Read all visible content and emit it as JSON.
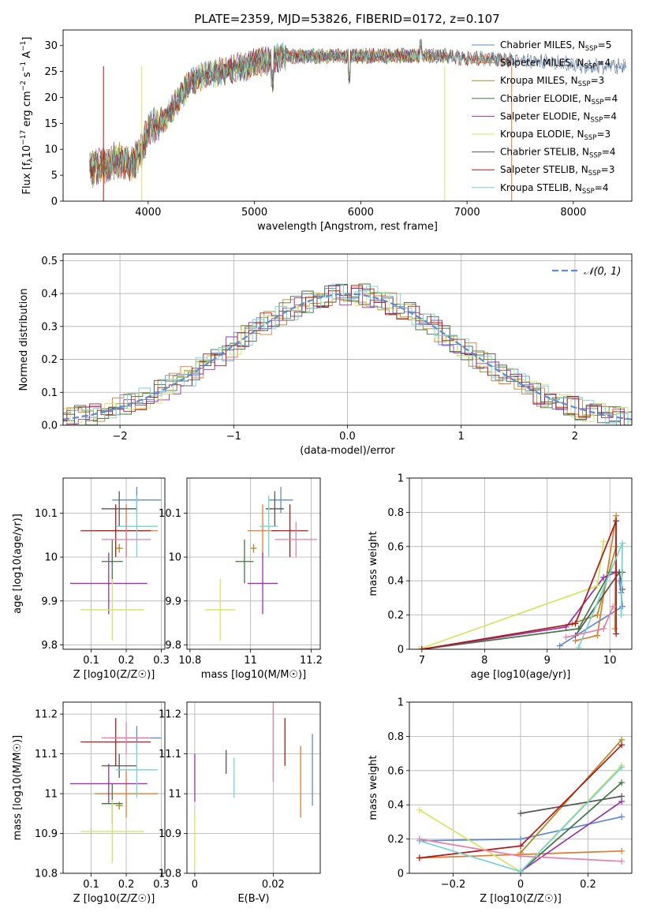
{
  "figure_title": "PLATE=2359, MJD=53826, FIBERID=0172, z=0.107",
  "colors": {
    "Chabrier MILES": "#5b8bd6",
    "Salpeter MILES": "#e07b2e",
    "Kroupa MILES": "#b08a1c",
    "Chabrier ELODIE": "#3d7a3d",
    "Salpeter ELODIE": "#9b30b5",
    "Kroupa ELODIE": "#d4e65a",
    "Chabrier STELIB": "#555555",
    "Salpeter STELIB": "#b01818",
    "Kroupa STELIB": "#72d4d4",
    "pink": "#e87fa6"
  },
  "chart_data": [
    {
      "id": "spectrum",
      "type": "line",
      "xlabel": "wavelength [Angstrom, rest frame]",
      "ylabel": "Flux [f_λ 10^-17 erg cm^-2 s^-1 A^-1]",
      "xlim": [
        3200,
        8550
      ],
      "ylim": [
        0,
        33
      ],
      "xticks": [
        4000,
        5000,
        6000,
        7000,
        8000
      ],
      "yticks": [
        0,
        5,
        10,
        15,
        20,
        25,
        30
      ],
      "grid": false,
      "legend_position": "right",
      "legend": [
        {
          "label": "Chabrier MILES, N",
          "sub": "SSP",
          "suffix": "=5"
        },
        {
          "label": "Salpeter MILES, N",
          "sub": "SSP",
          "suffix": "=4"
        },
        {
          "label": "Kroupa MILES, N",
          "sub": "SSP",
          "suffix": "=3"
        },
        {
          "label": "Chabrier ELODIE, N",
          "sub": "SSP",
          "suffix": "=4"
        },
        {
          "label": "Salpeter ELODIE, N",
          "sub": "SSP",
          "suffix": "=4"
        },
        {
          "label": "Kroupa ELODIE, N",
          "sub": "SSP",
          "suffix": "=3"
        },
        {
          "label": "Chabrier STELIB, N",
          "sub": "SSP",
          "suffix": "=4"
        },
        {
          "label": "Salpeter STELIB, N",
          "sub": "SSP",
          "suffix": "=3"
        },
        {
          "label": "Kroupa STELIB, N",
          "sub": "SSP",
          "suffix": "=4"
        }
      ],
      "envelope": {
        "x": [
          3450,
          3600,
          3700,
          3850,
          3950,
          4000,
          4100,
          4200,
          4300,
          4400,
          4500,
          4700,
          4900,
          5100,
          5300,
          5600,
          5800,
          6000,
          6200,
          6500,
          6800,
          7000,
          7200,
          7500,
          7800,
          8100,
          8500
        ],
        "y": [
          6,
          7,
          8,
          7,
          10,
          14,
          15,
          17,
          20,
          23,
          24,
          25,
          26,
          27,
          28,
          28,
          28,
          28,
          28,
          28,
          28,
          27.5,
          27.5,
          27,
          27,
          26,
          26
        ]
      }
    },
    {
      "id": "residual-histogram",
      "type": "step",
      "xlabel": "(data-model)/error",
      "ylabel": "Normed distribution",
      "xlim": [
        -2.5,
        2.5
      ],
      "ylim": [
        0,
        0.52
      ],
      "xticks": [
        -2,
        -1,
        0,
        1,
        2
      ],
      "yticks": [
        0.0,
        0.1,
        0.2,
        0.3,
        0.4,
        0.5
      ],
      "grid": true,
      "legend_position": "top-right",
      "legend": [
        {
          "label": "𝒩(0, 1)"
        }
      ],
      "curve": "normal pdf, mean 0, sigma 1"
    },
    {
      "id": "age-vs-Z",
      "type": "errorbar",
      "xlabel": "Z [log10(Z/Z☉)]",
      "ylabel": "age [log10(age/yr)]",
      "xlim": [
        0.02,
        0.31
      ],
      "ylim": [
        9.79,
        10.18
      ],
      "xticks": [
        0.1,
        0.2,
        0.3
      ],
      "yticks": [
        9.8,
        9.9,
        10.0,
        10.1
      ],
      "grid": true,
      "points": [
        {
          "model": "Chabrier MILES",
          "x": 0.23,
          "y": 10.13,
          "xerr": 0.07,
          "yerr": 0.03
        },
        {
          "model": "Salpeter MILES",
          "x": 0.2,
          "y": 10.06,
          "xerr": 0.09,
          "yerr": 0.06
        },
        {
          "model": "Kroupa MILES",
          "x": 0.18,
          "y": 10.02,
          "xerr": 0.01,
          "yerr": 0.01
        },
        {
          "model": "Chabrier ELODIE",
          "x": 0.16,
          "y": 9.99,
          "xerr": 0.03,
          "yerr": 0.05
        },
        {
          "model": "Salpeter ELODIE",
          "x": 0.15,
          "y": 9.94,
          "xerr": 0.11,
          "yerr": 0.07
        },
        {
          "model": "Kroupa ELODIE",
          "x": 0.16,
          "y": 9.88,
          "xerr": 0.09,
          "yerr": 0.07
        },
        {
          "model": "Chabrier STELIB",
          "x": 0.18,
          "y": 10.11,
          "xerr": 0.05,
          "yerr": 0.04
        },
        {
          "model": "Salpeter STELIB",
          "x": 0.17,
          "y": 10.06,
          "xerr": 0.1,
          "yerr": 0.06
        },
        {
          "model": "Kroupa STELIB",
          "x": 0.23,
          "y": 10.07,
          "xerr": 0.06,
          "yerr": 0.07
        },
        {
          "model": "pink",
          "x": 0.2,
          "y": 10.04,
          "xerr": 0.07,
          "yerr": 0.04
        }
      ]
    },
    {
      "id": "age-vs-mass",
      "type": "errorbar",
      "xlabel": "mass [log10(M/M☉)]",
      "ylabel": "",
      "xlim": [
        10.79,
        11.23
      ],
      "ylim": [
        9.79,
        10.18
      ],
      "xticks": [
        10.8,
        11.0,
        11.2
      ],
      "yticks": [
        9.8,
        9.9,
        10.0,
        10.1
      ],
      "grid": true,
      "points": [
        {
          "model": "Chabrier MILES",
          "x": 11.1,
          "y": 10.13,
          "xerr": 0.04,
          "yerr": 0.03
        },
        {
          "model": "Salpeter MILES",
          "x": 11.04,
          "y": 10.06,
          "xerr": 0.05,
          "yerr": 0.06
        },
        {
          "model": "Kroupa MILES",
          "x": 11.01,
          "y": 10.02,
          "xerr": 0.01,
          "yerr": 0.01
        },
        {
          "model": "Chabrier ELODIE",
          "x": 10.98,
          "y": 9.99,
          "xerr": 0.03,
          "yerr": 0.05
        },
        {
          "model": "Salpeter ELODIE",
          "x": 11.04,
          "y": 9.94,
          "xerr": 0.05,
          "yerr": 0.07
        },
        {
          "model": "Kroupa ELODIE",
          "x": 10.9,
          "y": 9.88,
          "xerr": 0.05,
          "yerr": 0.07
        },
        {
          "model": "Chabrier STELIB",
          "x": 11.08,
          "y": 10.11,
          "xerr": 0.03,
          "yerr": 0.04
        },
        {
          "model": "Salpeter STELIB",
          "x": 11.13,
          "y": 10.06,
          "xerr": 0.06,
          "yerr": 0.06
        },
        {
          "model": "Kroupa STELIB",
          "x": 11.06,
          "y": 10.07,
          "xerr": 0.03,
          "yerr": 0.07
        },
        {
          "model": "pink",
          "x": 11.15,
          "y": 10.04,
          "xerr": 0.07,
          "yerr": 0.04
        }
      ]
    },
    {
      "id": "massweight-vs-age",
      "type": "line",
      "xlabel": "age [log10(age/yr)]",
      "ylabel": "mass weight",
      "xlim": [
        6.8,
        10.35
      ],
      "ylim": [
        0,
        1
      ],
      "xticks": [
        7,
        8,
        9,
        10
      ],
      "yticks": [
        0.0,
        0.2,
        0.4,
        0.6,
        0.8,
        1.0
      ],
      "grid": true,
      "series": [
        {
          "model": "Chabrier MILES",
          "x": [
            9.2,
            10.2,
            10.18,
            10.15
          ],
          "y": [
            0.02,
            0.25,
            0.33,
            0.4
          ]
        },
        {
          "model": "Salpeter MILES",
          "x": [
            9.45,
            9.8,
            10.1,
            10.08
          ],
          "y": [
            0.05,
            0.08,
            0.78,
            0.12
          ]
        },
        {
          "model": "Kroupa MILES",
          "x": [
            9.4,
            9.8,
            10.1
          ],
          "y": [
            0.15,
            0.2,
            0.6
          ]
        },
        {
          "model": "Chabrier ELODIE",
          "x": [
            7.0,
            9.5,
            10.0,
            10.2
          ],
          "y": [
            0.0,
            0.12,
            0.45,
            0.45
          ]
        },
        {
          "model": "Salpeter ELODIE",
          "x": [
            7.0,
            9.3,
            9.9,
            10.1
          ],
          "y": [
            0.0,
            0.13,
            0.42,
            0.45
          ]
        },
        {
          "model": "Kroupa ELODIE",
          "x": [
            6.95,
            9.8,
            9.9
          ],
          "y": [
            0.0,
            0.37,
            0.63
          ]
        },
        {
          "model": "Chabrier STELIB",
          "x": [
            9.45,
            10.15,
            10.2
          ],
          "y": [
            0.08,
            0.45,
            0.35
          ]
        },
        {
          "model": "Salpeter STELIB",
          "x": [
            7.0,
            9.45,
            10.1,
            10.1
          ],
          "y": [
            0.0,
            0.15,
            0.75,
            0.09
          ]
        },
        {
          "model": "Kroupa STELIB",
          "x": [
            9.5,
            10.2,
            10.18
          ],
          "y": [
            0.01,
            0.62,
            0.2
          ]
        },
        {
          "model": "pink",
          "x": [
            9.3,
            9.9,
            10.05
          ],
          "y": [
            0.07,
            0.12,
            0.25
          ]
        }
      ]
    },
    {
      "id": "mass-vs-Z",
      "type": "errorbar",
      "xlabel": "Z [log10(Z/Z☉)]",
      "ylabel": "mass [log10(M/M☉)]",
      "xlim": [
        0.02,
        0.31
      ],
      "ylim": [
        10.8,
        11.23
      ],
      "xticks": [
        0.1,
        0.2,
        0.3
      ],
      "yticks": [
        10.8,
        10.9,
        11.0,
        11.1,
        11.2
      ],
      "grid": true,
      "points": [
        {
          "model": "Chabrier MILES",
          "x": 0.23,
          "y": 11.14,
          "xerr": 0.07,
          "yerr": 0.03
        },
        {
          "model": "Salpeter MILES",
          "x": 0.2,
          "y": 11.0,
          "xerr": 0.09,
          "yerr": 0.06
        },
        {
          "model": "Kroupa MILES",
          "x": 0.18,
          "y": 10.97,
          "xerr": 0.01,
          "yerr": 0.01
        },
        {
          "model": "Chabrier ELODIE",
          "x": 0.16,
          "y": 10.975,
          "xerr": 0.03,
          "yerr": 0.05
        },
        {
          "model": "Salpeter ELODIE",
          "x": 0.15,
          "y": 11.025,
          "xerr": 0.11,
          "yerr": 0.05
        },
        {
          "model": "Kroupa ELODIE",
          "x": 0.16,
          "y": 10.905,
          "xerr": 0.09,
          "yerr": 0.08
        },
        {
          "model": "Chabrier STELIB",
          "x": 0.18,
          "y": 11.07,
          "xerr": 0.05,
          "yerr": 0.03
        },
        {
          "model": "Salpeter STELIB",
          "x": 0.17,
          "y": 11.13,
          "xerr": 0.1,
          "yerr": 0.06
        },
        {
          "model": "Kroupa STELIB",
          "x": 0.23,
          "y": 11.06,
          "xerr": 0.06,
          "yerr": 0.07
        },
        {
          "model": "pink",
          "x": 0.2,
          "y": 11.14,
          "xerr": 0.07,
          "yerr": 0.04
        }
      ]
    },
    {
      "id": "mass-vs-ebv",
      "type": "errorbar",
      "xlabel": "E(B-V)",
      "ylabel": "",
      "xlim": [
        -0.002,
        0.032
      ],
      "ylim": [
        10.8,
        11.23
      ],
      "xticks": [
        0.0,
        0.02
      ],
      "yticks": [
        10.8,
        10.9,
        11.0,
        11.1,
        11.2
      ],
      "grid": true,
      "points": [
        {
          "model": "Chabrier MILES",
          "x": 0.03,
          "y": 11.06,
          "xerr": 0,
          "yerr": 0.09
        },
        {
          "model": "Salpeter MILES",
          "x": 0.027,
          "y": 11.03,
          "xerr": 0,
          "yerr": 0.09
        },
        {
          "model": "Kroupa ELODIE",
          "x": 0.0,
          "y": 10.88,
          "xerr": 0,
          "yerr": 0.07
        },
        {
          "model": "Salpeter ELODIE",
          "x": 0.0,
          "y": 11.04,
          "xerr": 0,
          "yerr": 0.06
        },
        {
          "model": "Chabrier STELIB",
          "x": 0.008,
          "y": 11.08,
          "xerr": 0,
          "yerr": 0.03
        },
        {
          "model": "Salpeter STELIB",
          "x": 0.023,
          "y": 11.13,
          "xerr": 0,
          "yerr": 0.06
        },
        {
          "model": "Kroupa STELIB",
          "x": 0.01,
          "y": 11.04,
          "xerr": 0,
          "yerr": 0.05
        },
        {
          "model": "pink",
          "x": 0.02,
          "y": 11.13,
          "xerr": 0,
          "yerr": 0.1
        }
      ]
    },
    {
      "id": "massweight-vs-Z",
      "type": "line",
      "xlabel": "Z [log10(Z/Z☉)]",
      "ylabel": "mass weight",
      "xlim": [
        -0.33,
        0.33
      ],
      "ylim": [
        0,
        1
      ],
      "xticks": [
        -0.2,
        0.0,
        0.2
      ],
      "yticks": [
        0.0,
        0.2,
        0.4,
        0.6,
        0.8,
        1.0
      ],
      "grid": true,
      "series": [
        {
          "model": "Chabrier MILES",
          "x": [
            -0.3,
            0.0,
            0.3
          ],
          "y": [
            0.19,
            0.2,
            0.33
          ]
        },
        {
          "model": "Salpeter MILES",
          "x": [
            -0.3,
            0.0,
            0.3
          ],
          "y": [
            0.09,
            0.11,
            0.13
          ]
        },
        {
          "model": "Kroupa MILES",
          "x": [
            0.0,
            0.3
          ],
          "y": [
            0.12,
            0.78
          ]
        },
        {
          "model": "Chabrier ELODIE",
          "x": [
            0.0,
            0.3
          ],
          "y": [
            0.01,
            0.53
          ]
        },
        {
          "model": "Salpeter ELODIE",
          "x": [
            0.0,
            0.3
          ],
          "y": [
            0.01,
            0.42
          ]
        },
        {
          "model": "Kroupa ELODIE",
          "x": [
            -0.3,
            0.0,
            0.3
          ],
          "y": [
            0.37,
            0.01,
            0.63
          ]
        },
        {
          "model": "Chabrier STELIB",
          "x": [
            0.0,
            0.3
          ],
          "y": [
            0.35,
            0.45
          ]
        },
        {
          "model": "Salpeter STELIB",
          "x": [
            -0.3,
            0.0,
            0.3
          ],
          "y": [
            0.09,
            0.16,
            0.75
          ]
        },
        {
          "model": "Kroupa STELIB",
          "x": [
            -0.3,
            0.0,
            0.3
          ],
          "y": [
            0.19,
            0.01,
            0.62
          ]
        },
        {
          "model": "pink",
          "x": [
            -0.3,
            0.0,
            0.3
          ],
          "y": [
            0.2,
            0.1,
            0.07
          ]
        }
      ]
    }
  ]
}
